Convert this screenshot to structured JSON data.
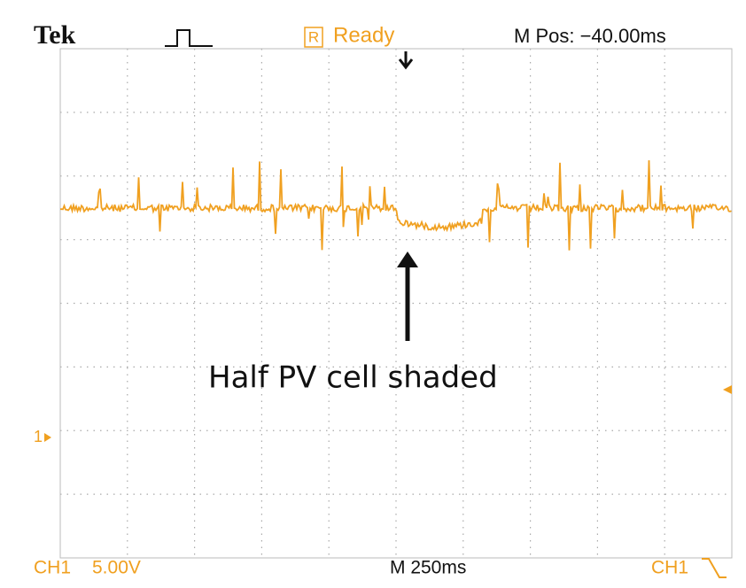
{
  "header": {
    "brand": "Tek",
    "status_icon": "R",
    "status": "Ready",
    "position": "M Pos: −40.00ms"
  },
  "annotation": "Half PV cell shaded",
  "channel_marker": "1",
  "footer": {
    "channel": "CH1",
    "volts_per_div": "5.00V",
    "timebase": "M 250ms",
    "trigger_source": "CH1"
  }
}
